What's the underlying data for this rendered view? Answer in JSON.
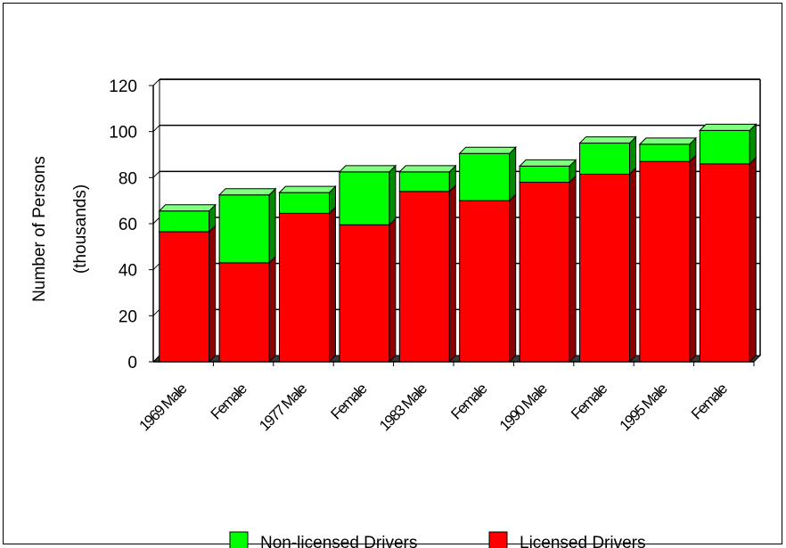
{
  "chart_data": {
    "type": "bar",
    "stacked": true,
    "style": "3d",
    "categories": [
      "1969 Male",
      "Female",
      "1977 Male",
      "Female",
      "1983 Male",
      "Female",
      "1990 Male",
      "Female",
      "1995 Male",
      "Female"
    ],
    "series": [
      {
        "name": "Licensed Drivers",
        "color": "#ff0000",
        "values": [
          56.5,
          43,
          64.5,
          59.5,
          74,
          70,
          78,
          81.5,
          87,
          86
        ]
      },
      {
        "name": "Non-licensed Drivers",
        "color": "#00ff00",
        "values": [
          9,
          29.5,
          9,
          23,
          8.5,
          20.5,
          7,
          13.5,
          7.5,
          14.5
        ]
      }
    ],
    "ylabel_lines": [
      "Number of Persons",
      "(thousands)"
    ],
    "ylim": [
      0,
      120
    ],
    "yticks": [
      "0",
      "20",
      "40",
      "60",
      "80",
      "100",
      "120"
    ],
    "grid": true,
    "legend": {
      "position": "bottom",
      "entries": [
        {
          "label": "Non-licensed Drivers",
          "color": "#00ff00"
        },
        {
          "label": "Licensed Drivers",
          "color": "#ff0000"
        }
      ]
    }
  }
}
